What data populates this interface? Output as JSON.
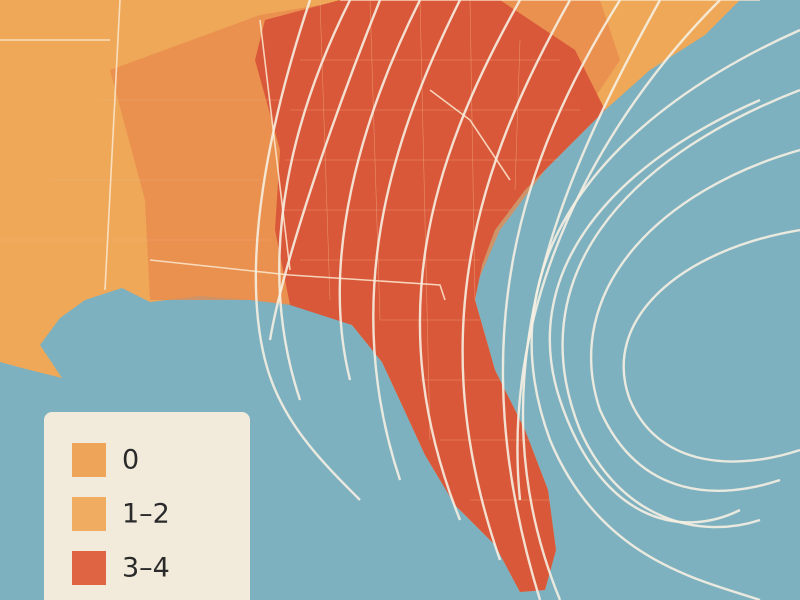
{
  "legend": {
    "items": [
      {
        "label": "0",
        "color": "#eea55a"
      },
      {
        "label": "1–2",
        "color": "#f0ad62"
      },
      {
        "label": "3–4",
        "color": "#de6444"
      }
    ]
  }
}
